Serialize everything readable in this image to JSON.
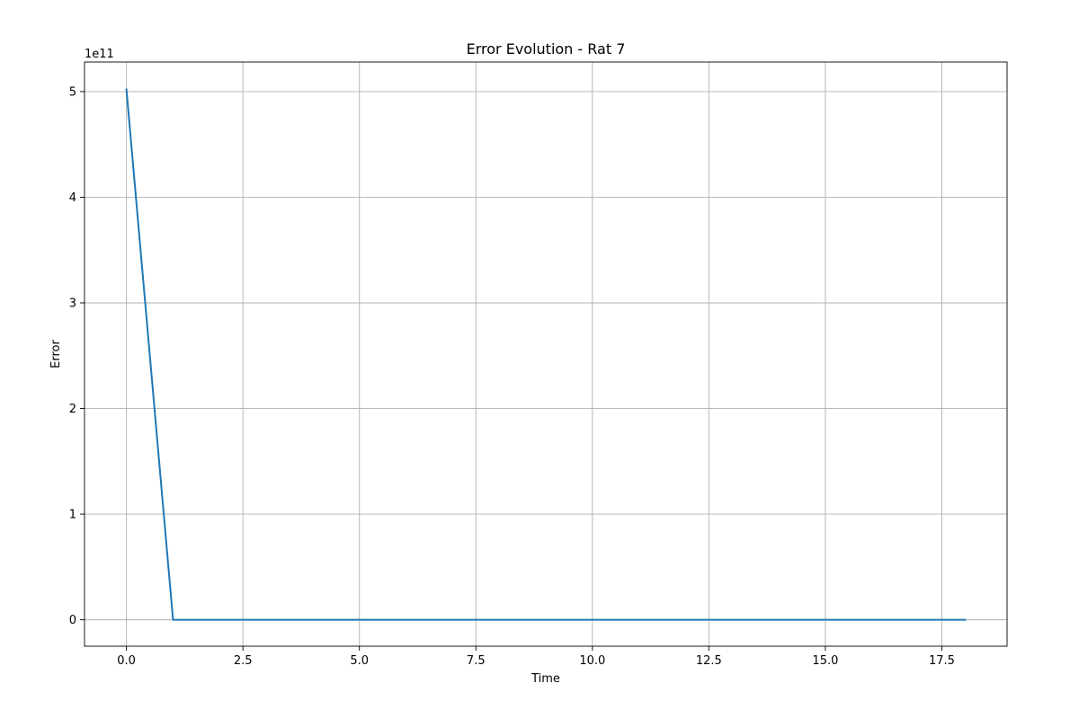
{
  "chart_data": {
    "type": "line",
    "title": "Error Evolution - Rat 7",
    "xlabel": "Time",
    "ylabel": "Error",
    "y_offset_label": "1e11",
    "xlim": [
      -0.9,
      18.9
    ],
    "ylim": [
      -0.25,
      5.28
    ],
    "y_scale_factor": 100000000000.0,
    "grid": true,
    "x_ticks": [
      0.0,
      2.5,
      5.0,
      7.5,
      10.0,
      12.5,
      15.0,
      17.5
    ],
    "x_tick_labels": [
      "0.0",
      "2.5",
      "5.0",
      "7.5",
      "10.0",
      "12.5",
      "15.0",
      "17.5"
    ],
    "y_ticks": [
      0,
      1,
      2,
      3,
      4,
      5
    ],
    "y_tick_labels": [
      "0",
      "1",
      "2",
      "3",
      "4",
      "5"
    ],
    "series": [
      {
        "color": "#1f77b4",
        "x": [
          0,
          1,
          2,
          3,
          4,
          5,
          6,
          7,
          8,
          9,
          10,
          11,
          12,
          13,
          14,
          15,
          16,
          17,
          18
        ],
        "y": [
          5.02,
          0,
          0,
          0,
          0,
          0,
          0,
          0,
          0,
          0,
          0,
          0,
          0,
          0,
          0,
          0,
          0,
          0,
          0
        ]
      }
    ]
  }
}
